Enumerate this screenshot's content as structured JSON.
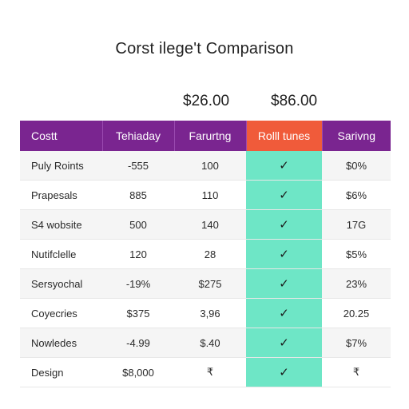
{
  "title": "Corst ilege't Comparison",
  "prices": [
    "$26.00",
    "$86.00"
  ],
  "table": {
    "headers": [
      "Costt",
      "Tehiaday",
      "Farurtng",
      "Rolll tunes",
      "Sarivng"
    ],
    "rows": [
      {
        "label": "Puly Roints",
        "values": [
          "-555",
          "100",
          "✓",
          "$0%"
        ]
      },
      {
        "label": "Prapesals",
        "values": [
          "885",
          "110",
          "✓",
          "$6%"
        ]
      },
      {
        "label": "S4 wobsite",
        "values": [
          "500",
          "140",
          "✓",
          "17G"
        ]
      },
      {
        "label": "Nutifclelle",
        "values": [
          "120",
          "28",
          "✓",
          "$5%"
        ]
      },
      {
        "label": "Sersyochal",
        "values": [
          "-19%",
          "$275",
          "✓",
          "23%"
        ]
      },
      {
        "label": "Coyecries",
        "values": [
          "$375",
          "3,96",
          "✓",
          "20.25"
        ]
      },
      {
        "label": "Nowledes",
        "values": [
          "-4.99",
          "$.40",
          "✓",
          "$7%"
        ]
      },
      {
        "label": "Design",
        "values": [
          "$8,000",
          "₹",
          "✓",
          "₹"
        ]
      }
    ]
  },
  "colors": {
    "header": "#7a2590",
    "highlight_header": "#f05b3a",
    "highlight_column": "#6ee6c6"
  },
  "icons": {
    "check": "check-icon"
  }
}
